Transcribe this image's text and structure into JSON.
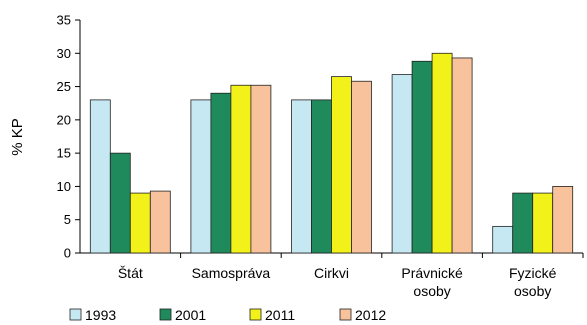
{
  "chart_data": {
    "type": "bar",
    "ylabel": "% KP",
    "ylim": [
      0,
      35
    ],
    "yticks": [
      0,
      5,
      10,
      15,
      20,
      25,
      30,
      35
    ],
    "grid": false,
    "legend_position": "bottom-left",
    "categories": [
      [
        "Štát"
      ],
      [
        "Samospráva"
      ],
      [
        "Cirkvi"
      ],
      [
        "Právnické",
        "osoby"
      ],
      [
        "Fyzické",
        "osoby"
      ]
    ],
    "series": [
      {
        "name": "1993",
        "color": "#c5e8f3",
        "values": [
          23,
          23,
          23,
          26.8,
          4
        ]
      },
      {
        "name": "2001",
        "color": "#1f8a5c",
        "values": [
          15,
          24,
          23,
          28.8,
          9
        ]
      },
      {
        "name": "2011",
        "color": "#f2f21a",
        "values": [
          9,
          25.2,
          26.5,
          30,
          9
        ]
      },
      {
        "name": "2012",
        "color": "#f8c29c",
        "values": [
          9.3,
          25.2,
          25.8,
          29.3,
          10
        ]
      }
    ]
  }
}
